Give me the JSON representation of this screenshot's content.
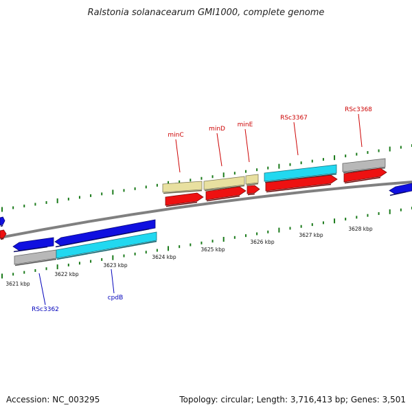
{
  "title": "Ralstonia solanacearum GMI1000, complete genome",
  "footer": {
    "accession": "Accession: NC_003295",
    "stats": "Topology: circular; Length: 3,716,413 bp; Genes: 3,501"
  },
  "colors": {
    "backbone": "#808080",
    "tick": "#1a7a1a",
    "label_top": "#cc0000",
    "label_bottom": "#0000bb",
    "blue": "#1010e0",
    "cyan": "#22d8f0",
    "red": "#ee1111",
    "gray": "#b8b8b8",
    "khaki": "#e8e0a0"
  },
  "positions": [
    {
      "label": "3621 kbp"
    },
    {
      "label": "3622 kbp"
    },
    {
      "label": "3623 kbp"
    },
    {
      "label": "3624 kbp"
    },
    {
      "label": "3625 kbp"
    },
    {
      "label": "3626 kbp"
    },
    {
      "label": "3627 kbp"
    },
    {
      "label": "3628 kbp"
    }
  ],
  "gene_labels": [
    {
      "text": "minC",
      "side": "top"
    },
    {
      "text": "minD",
      "side": "top"
    },
    {
      "text": "minE",
      "side": "top"
    },
    {
      "text": "RSc3367",
      "side": "top"
    },
    {
      "text": "RSc3368",
      "side": "top"
    },
    {
      "text": "RSc3362",
      "side": "bottom"
    },
    {
      "text": "cpdB",
      "side": "bottom"
    }
  ]
}
